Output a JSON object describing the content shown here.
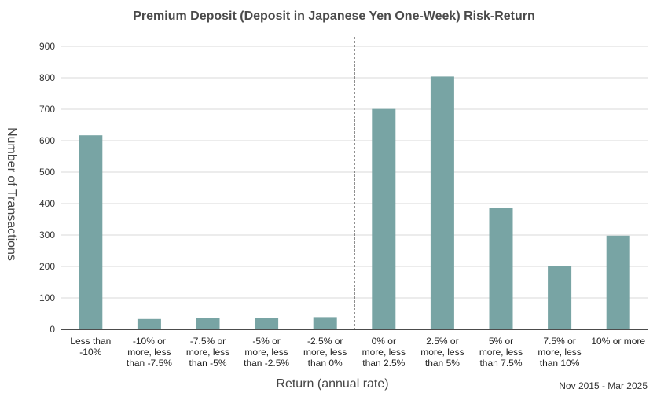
{
  "chart_data": {
    "type": "bar",
    "title": "Premium Deposit (Deposit in Japanese Yen One-Week) Risk-Return",
    "xlabel": "Return (annual rate)",
    "ylabel": "Number of Transactions",
    "period": "Nov 2015 - Mar 2025",
    "ylim": [
      0,
      900
    ],
    "yticks": [
      0,
      100,
      200,
      300,
      400,
      500,
      600,
      700,
      800,
      900
    ],
    "grid": true,
    "legend": "none",
    "divider_after_category": 4,
    "bar_color": "#78a4a4",
    "categories": [
      [
        "Less than",
        "-10%"
      ],
      [
        "-10% or",
        "more, less",
        "than -7.5%"
      ],
      [
        "-7.5% or",
        "more, less",
        "than -5%"
      ],
      [
        "-5% or",
        "more, less",
        "than -2.5%"
      ],
      [
        "-2.5% or",
        "more, less",
        "than 0%"
      ],
      [
        "0% or",
        "more, less",
        "than 2.5%"
      ],
      [
        "2.5% or",
        "more, less",
        "than 5%"
      ],
      [
        "5% or",
        "more, less",
        "than 7.5%"
      ],
      [
        "7.5% or",
        "more, less",
        "than 10%"
      ],
      [
        "10% or more"
      ]
    ],
    "values": [
      617,
      33,
      37,
      37,
      39,
      701,
      804,
      387,
      200,
      298
    ]
  }
}
